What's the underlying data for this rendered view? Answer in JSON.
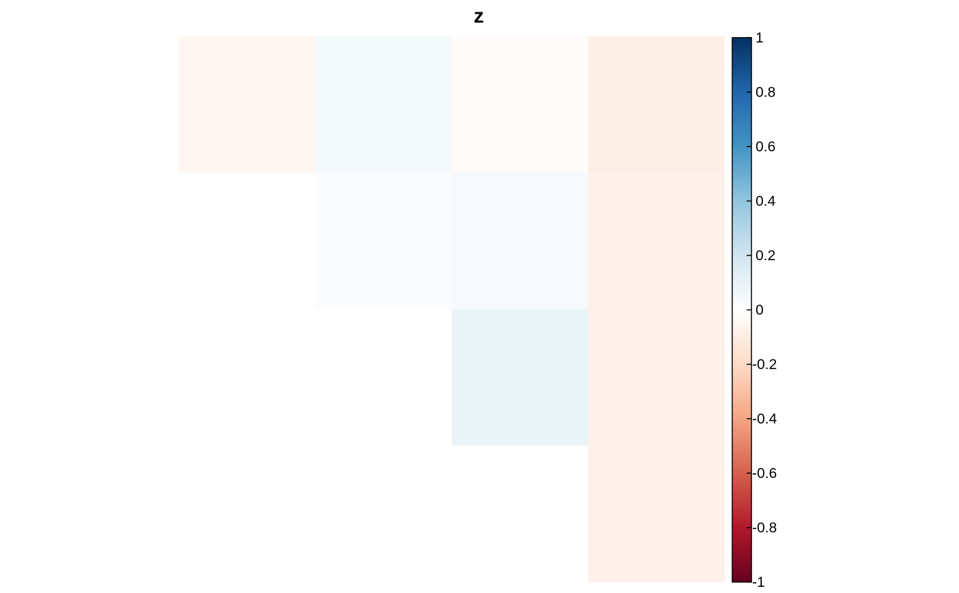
{
  "chart_data": {
    "type": "heatmap",
    "title": "z",
    "layout": "upper-triangular",
    "n_rows": 4,
    "n_cols": 4,
    "cells": [
      {
        "row": 0,
        "col": 0,
        "value": -0.05
      },
      {
        "row": 0,
        "col": 1,
        "value": 0.05
      },
      {
        "row": 0,
        "col": 2,
        "value": -0.02
      },
      {
        "row": 0,
        "col": 3,
        "value": -0.09
      },
      {
        "row": 1,
        "col": 1,
        "value": 0.02
      },
      {
        "row": 1,
        "col": 2,
        "value": 0.04
      },
      {
        "row": 1,
        "col": 3,
        "value": -0.08
      },
      {
        "row": 2,
        "col": 2,
        "value": 0.09
      },
      {
        "row": 2,
        "col": 3,
        "value": -0.08
      },
      {
        "row": 3,
        "col": 3,
        "value": -0.08
      }
    ],
    "colorbar": {
      "range": [
        -1,
        1
      ],
      "ticks": [
        1,
        0.8,
        0.6,
        0.4,
        0.2,
        0,
        -0.2,
        -0.4,
        -0.6,
        -0.8,
        -1
      ],
      "tick_labels": [
        "1",
        "0.8",
        "0.6",
        "0.4",
        "0.2",
        "0",
        "-0.2",
        "-0.4",
        "-0.6",
        "-0.8",
        "-1"
      ],
      "colors": [
        "#67001f",
        "#b2182b",
        "#d6604d",
        "#f4a582",
        "#fddbc7",
        "#ffffff",
        "#d1e5f0",
        "#92c5de",
        "#4393c3",
        "#2166ac",
        "#053061"
      ]
    }
  }
}
